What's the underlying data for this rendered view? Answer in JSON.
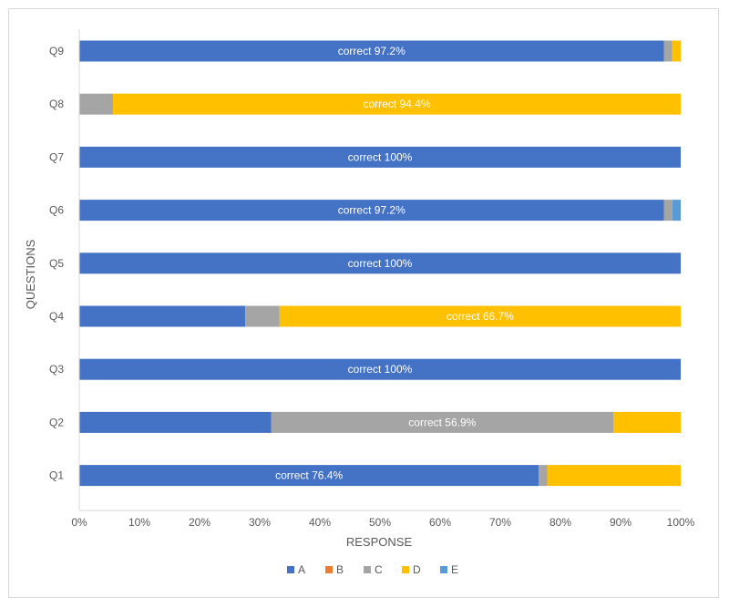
{
  "chart_data": {
    "type": "bar",
    "orientation": "horizontal",
    "stacked": true,
    "categories": [
      "Q9",
      "Q8",
      "Q7",
      "Q6",
      "Q5",
      "Q4",
      "Q3",
      "Q2",
      "Q1"
    ],
    "series": [
      {
        "name": "A",
        "color": "#4472C4",
        "values": [
          97.2,
          0,
          100,
          97.2,
          100,
          27.6,
          100,
          31.9,
          76.4
        ]
      },
      {
        "name": "B",
        "color": "#ED7D31",
        "values": [
          0,
          0,
          0,
          0,
          0,
          0,
          0,
          0,
          0
        ]
      },
      {
        "name": "C",
        "color": "#A5A5A5",
        "values": [
          1.4,
          5.6,
          0,
          1.4,
          0,
          5.7,
          0,
          56.9,
          1.4
        ]
      },
      {
        "name": "D",
        "color": "#FFC000",
        "values": [
          1.4,
          94.4,
          0,
          0,
          0,
          66.7,
          0,
          11.2,
          22.2
        ]
      },
      {
        "name": "E",
        "color": "#5B9BD5",
        "values": [
          0,
          0,
          0,
          1.4,
          0,
          0,
          0,
          0,
          0
        ]
      }
    ],
    "data_labels": [
      {
        "category": "Q9",
        "series": "A",
        "text": "correct  97.2%"
      },
      {
        "category": "Q8",
        "series": "D",
        "text": "correct 94.4%"
      },
      {
        "category": "Q7",
        "series": "A",
        "text": "correct 100%"
      },
      {
        "category": "Q6",
        "series": "A",
        "text": "correct 97.2%"
      },
      {
        "category": "Q5",
        "series": "A",
        "text": "correct 100%"
      },
      {
        "category": "Q4",
        "series": "D",
        "text": "correct 66.7%"
      },
      {
        "category": "Q3",
        "series": "A",
        "text": "correct 100%"
      },
      {
        "category": "Q2",
        "series": "C",
        "text": "correct 56.9%"
      },
      {
        "category": "Q1",
        "series": "A",
        "text": "correct 76.4%"
      }
    ],
    "xticks": [
      "0%",
      "10%",
      "20%",
      "30%",
      "40%",
      "50%",
      "60%",
      "70%",
      "80%",
      "90%",
      "100%"
    ],
    "xlim": [
      0,
      100
    ],
    "xlabel": "RESPONSE",
    "ylabel": "QUESTIONS",
    "grid": false,
    "legend_position": "bottom"
  }
}
